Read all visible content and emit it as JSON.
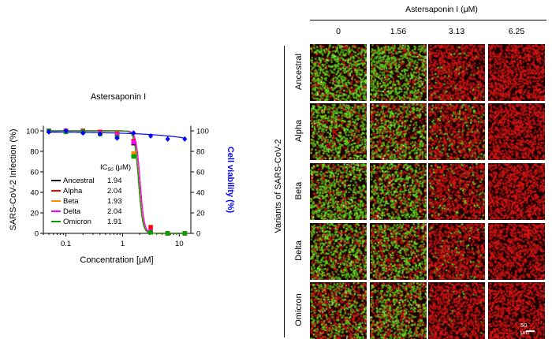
{
  "chart_data": {
    "type": "line",
    "title": "Astersaponin I",
    "xlabel": "Concentration [μM]",
    "ylabel_left": "SARS-CoV-2 Infection (%)",
    "ylabel_right": "Cell viability (%)",
    "x_scale": "log",
    "xlim": [
      0.04,
      16
    ],
    "ylim": [
      0,
      110
    ],
    "x_ticks": [
      "0.1",
      "1",
      "10"
    ],
    "y_ticks": [
      "0",
      "20",
      "40",
      "60",
      "80",
      "100"
    ],
    "legend_header": "IC",
    "legend_header_sub": "50",
    "legend_header_unit": " (μM)",
    "series": [
      {
        "name": "Ancestral",
        "ic50": "1.94",
        "color": "#000000",
        "x": [
          0.05,
          0.1,
          0.2,
          0.4,
          0.8,
          1.56,
          3.13,
          6.25,
          12.5
        ],
        "y": [
          100,
          100,
          99,
          98,
          95,
          88,
          1,
          0,
          0
        ]
      },
      {
        "name": "Alpha",
        "ic50": "2.04",
        "color": "#ff0000",
        "x": [
          0.05,
          0.1,
          0.2,
          0.4,
          0.8,
          1.56,
          3.13,
          6.25,
          12.5
        ],
        "y": [
          100,
          100,
          100,
          99,
          97,
          90,
          6,
          0,
          0
        ]
      },
      {
        "name": "Beta",
        "ic50": "1.93",
        "color": "#ff8c00",
        "x": [
          0.05,
          0.1,
          0.2,
          0.4,
          0.8,
          1.56,
          3.13,
          6.25,
          12.5
        ],
        "y": [
          100,
          99,
          99,
          97,
          94,
          78,
          1,
          0,
          0
        ]
      },
      {
        "name": "Delta",
        "ic50": "2.04",
        "color": "#ff00ff",
        "x": [
          0.05,
          0.1,
          0.2,
          0.4,
          0.8,
          1.56,
          3.13,
          6.25,
          12.5
        ],
        "y": [
          100,
          100,
          99,
          98,
          96,
          89,
          2,
          0,
          0
        ]
      },
      {
        "name": "Omicron",
        "ic50": "1.91",
        "color": "#00a000",
        "x": [
          0.05,
          0.1,
          0.2,
          0.4,
          0.8,
          1.56,
          3.13,
          6.25,
          12.5
        ],
        "y": [
          100,
          99,
          99,
          97,
          94,
          75,
          1,
          0,
          0
        ]
      }
    ],
    "viability": {
      "color": "#0000ff",
      "x": [
        0.05,
        0.1,
        0.2,
        0.4,
        0.8,
        1.56,
        3.13,
        6.25,
        12.5
      ],
      "y": [
        99,
        100,
        98,
        97,
        93,
        98,
        95,
        92,
        92
      ]
    },
    "fit_params": [
      {
        "ic50": 1.94,
        "hill": 12
      },
      {
        "ic50": 2.04,
        "hill": 12
      },
      {
        "ic50": 1.93,
        "hill": 12
      },
      {
        "ic50": 2.04,
        "hill": 12
      },
      {
        "ic50": 1.91,
        "hill": 12
      }
    ]
  },
  "image_panel": {
    "title": "Astersaponin I (μM)",
    "concentrations": [
      "0",
      "1.56",
      "3.13",
      "6.25"
    ],
    "y_title": "Variants of SARS-CoV-2",
    "variants": [
      "Ancestral",
      "Alpha",
      "Beta",
      "Delta",
      "Omicron"
    ],
    "green_fraction": [
      [
        0.75,
        0.72,
        0.06,
        0.0
      ],
      [
        0.7,
        0.55,
        0.18,
        0.0
      ],
      [
        0.72,
        0.65,
        0.12,
        0.0
      ],
      [
        0.68,
        0.52,
        0.1,
        0.0
      ],
      [
        0.45,
        0.58,
        0.04,
        0.0
      ]
    ],
    "scale_bar": "50 μm"
  },
  "colors": {
    "infected": "#43c22a",
    "nuclei": "#cc1a1a",
    "background": "#1a0000"
  }
}
